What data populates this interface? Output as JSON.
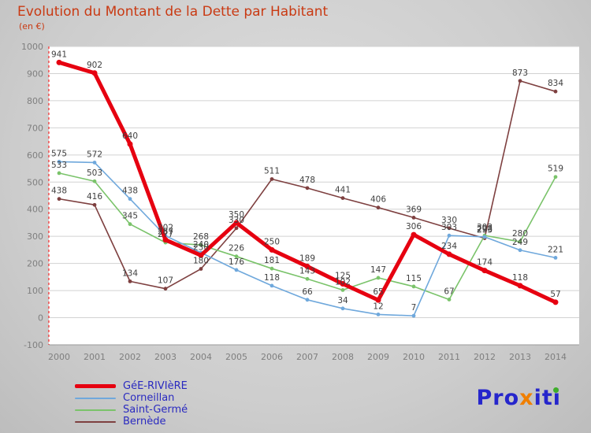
{
  "header": {
    "title": "Evolution du Montant de la Dette par Habitant",
    "subtitle": "(en €)"
  },
  "chart_data": {
    "type": "line",
    "x": [
      2000,
      2001,
      2002,
      2003,
      2004,
      2005,
      2006,
      2007,
      2008,
      2009,
      2010,
      2011,
      2012,
      2013,
      2014
    ],
    "ylim": [
      -100,
      1000
    ],
    "ytick_step": 100,
    "grid": "horizontal",
    "legend_position": "bottom-left",
    "show_point_labels": true,
    "series": [
      {
        "name": "GéE-RIVIèRE",
        "color": "#e60010",
        "stroke_width": 5,
        "marker_radius": 3.5,
        "values": [
          941,
          902,
          640,
          287,
          230,
          350,
          250,
          189,
          125,
          65,
          306,
          234,
          174,
          118,
          57
        ]
      },
      {
        "name": "Corneillan",
        "color": "#6fa8dc",
        "stroke_width": 1.6,
        "marker_radius": 2.4,
        "values": [
          575,
          572,
          438,
          302,
          240,
          176,
          118,
          66,
          34,
          12,
          7,
          303,
          298,
          249,
          221
        ]
      },
      {
        "name": "Saint-Germé",
        "color": "#7ac36a",
        "stroke_width": 1.6,
        "marker_radius": 2.4,
        "values": [
          533,
          503,
          345,
          277,
          268,
          226,
          181,
          143,
          102,
          147,
          115,
          67,
          303,
          280,
          519
        ]
      },
      {
        "name": "Bernède",
        "color": "#7e4040",
        "stroke_width": 1.6,
        "marker_radius": 2.4,
        "values": [
          438,
          416,
          134,
          107,
          180,
          330,
          511,
          478,
          441,
          406,
          369,
          330,
          293,
          873,
          834
        ]
      }
    ]
  },
  "axis_style": {
    "tick_label_color": "#7f7f7f",
    "grid_color": "#d2d2d2",
    "baseline_color": "#9a9a9a",
    "axis_dash_color": "#ff0000",
    "point_label_color": "#404040"
  },
  "branding": {
    "logo_text": "Proxiti",
    "logo_parts": [
      {
        "text": "Pro",
        "color": "#2626cc"
      },
      {
        "text": "x",
        "color": "#f07f00"
      },
      {
        "text": "it",
        "color": "#2626cc"
      },
      {
        "text": "i",
        "color": "#2626cc",
        "dot_color": "#3fae2a"
      }
    ]
  }
}
